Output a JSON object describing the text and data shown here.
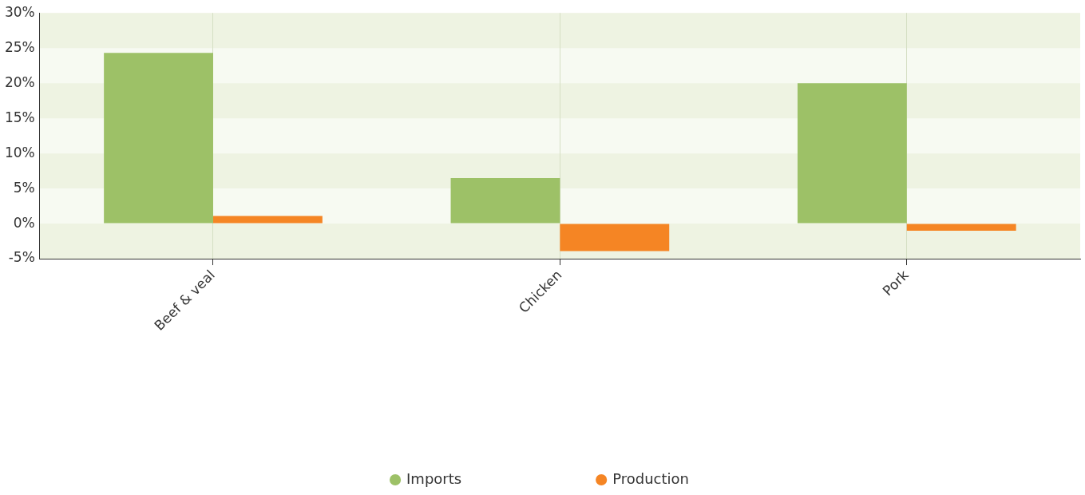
{
  "chart_data": {
    "type": "bar",
    "categories": [
      "Beef & veal",
      "Chicken",
      "Pork"
    ],
    "series": [
      {
        "name": "Imports",
        "color": "#9dc167",
        "values": [
          24.3,
          6.5,
          20.0
        ]
      },
      {
        "name": "Production",
        "color": "#f58524",
        "values": [
          1.1,
          -3.9,
          -1.0
        ]
      }
    ],
    "ylim": [
      -5,
      30
    ],
    "yticks": [
      {
        "value": -5,
        "label": "-5%"
      },
      {
        "value": 0,
        "label": "0%"
      },
      {
        "value": 5,
        "label": "5%"
      },
      {
        "value": 10,
        "label": "10%"
      },
      {
        "value": 15,
        "label": "15%"
      },
      {
        "value": 20,
        "label": "20%"
      },
      {
        "value": 25,
        "label": "25%"
      },
      {
        "value": 30,
        "label": "30%"
      }
    ],
    "grid": true,
    "legend": "bottom"
  }
}
